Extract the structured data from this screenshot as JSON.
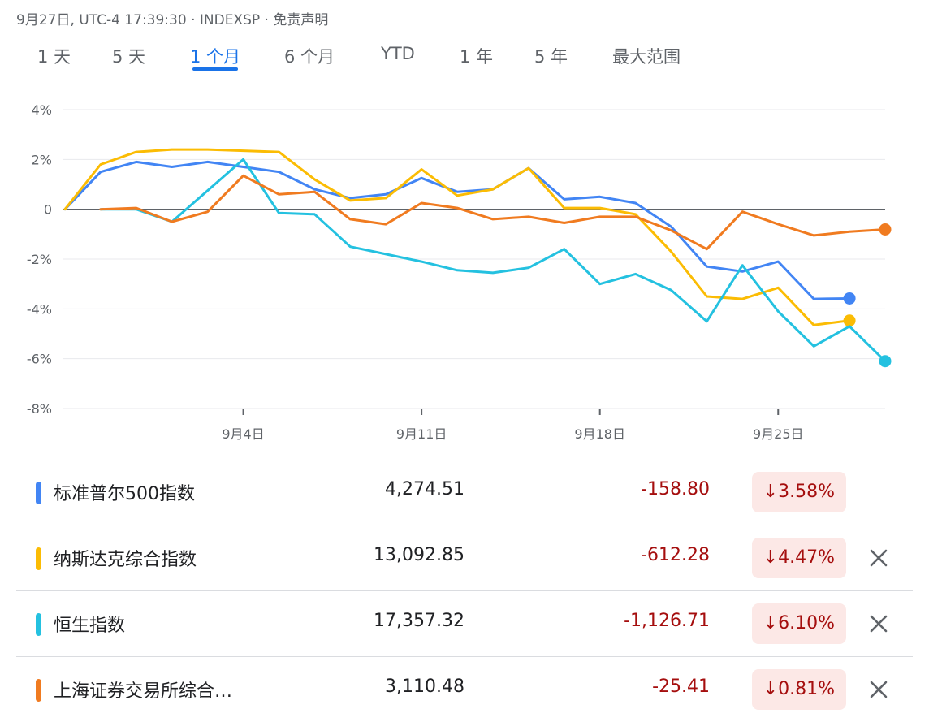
{
  "header": {
    "meta": "9月27日, UTC-4 17:39:30 · INDEXSP · 免责声明"
  },
  "tabs": [
    {
      "label": "1 天",
      "active": false
    },
    {
      "label": "5 天",
      "active": false
    },
    {
      "label": "1 个月",
      "active": true
    },
    {
      "label": "6 个月",
      "active": false
    },
    {
      "label": "YTD",
      "active": false
    },
    {
      "label": "1 年",
      "active": false
    },
    {
      "label": "5 年",
      "active": false
    },
    {
      "label": "最大范围",
      "active": false
    }
  ],
  "chart_data": {
    "type": "line",
    "yticks": [
      4,
      2,
      0,
      -2,
      -4,
      -6,
      -8
    ],
    "ytick_labels": [
      "4%",
      "2%",
      "0",
      "-2%",
      "-4%",
      "-6%",
      "-8%"
    ],
    "ylim": [
      -8,
      4
    ],
    "xlim": [
      0,
      23
    ],
    "xticks": [
      {
        "x": 5,
        "label": "9月4日"
      },
      {
        "x": 10,
        "label": "9月11日"
      },
      {
        "x": 15,
        "label": "9月18日"
      },
      {
        "x": 20,
        "label": "9月25日"
      }
    ],
    "grid": true,
    "series": [
      {
        "name": "标准普尔500指数",
        "color": "#4285f4",
        "points": [
          [
            0,
            0
          ],
          [
            1,
            1.5
          ],
          [
            2,
            1.9
          ],
          [
            3,
            1.7
          ],
          [
            4,
            1.9
          ],
          [
            5,
            1.7
          ],
          [
            6,
            1.5
          ],
          [
            7,
            0.8
          ],
          [
            8,
            0.45
          ],
          [
            9,
            0.6
          ],
          [
            10,
            1.25
          ],
          [
            11,
            0.7
          ],
          [
            12,
            0.8
          ],
          [
            13,
            1.65
          ],
          [
            14,
            0.4
          ],
          [
            15,
            0.5
          ],
          [
            16,
            0.25
          ],
          [
            17,
            -0.7
          ],
          [
            18,
            -2.3
          ],
          [
            19,
            -2.5
          ],
          [
            20,
            -2.1
          ],
          [
            21,
            -3.6
          ],
          [
            22,
            -3.58
          ]
        ]
      },
      {
        "name": "纳斯达克综合指数",
        "color": "#fbbc04",
        "points": [
          [
            0,
            0
          ],
          [
            1,
            1.8
          ],
          [
            2,
            2.3
          ],
          [
            3,
            2.4
          ],
          [
            4,
            2.4
          ],
          [
            5,
            2.35
          ],
          [
            6,
            2.3
          ],
          [
            7,
            1.2
          ],
          [
            8,
            0.35
          ],
          [
            9,
            0.45
          ],
          [
            10,
            1.6
          ],
          [
            11,
            0.55
          ],
          [
            12,
            0.8
          ],
          [
            13,
            1.65
          ],
          [
            14,
            0.05
          ],
          [
            15,
            0.05
          ],
          [
            16,
            -0.2
          ],
          [
            17,
            -1.7
          ],
          [
            18,
            -3.5
          ],
          [
            19,
            -3.6
          ],
          [
            20,
            -3.15
          ],
          [
            21,
            -4.65
          ],
          [
            22,
            -4.47
          ]
        ]
      },
      {
        "name": "恒生指数",
        "color": "#24c1e0",
        "points": [
          [
            1,
            0
          ],
          [
            2,
            0
          ],
          [
            3,
            -0.5
          ],
          [
            5,
            2.0
          ],
          [
            6,
            -0.15
          ],
          [
            7,
            -0.2
          ],
          [
            8,
            -1.5
          ],
          [
            9,
            -1.8
          ],
          [
            10,
            -2.1
          ],
          [
            11,
            -2.45
          ],
          [
            12,
            -2.55
          ],
          [
            13,
            -2.35
          ],
          [
            14,
            -1.6
          ],
          [
            15,
            -3.0
          ],
          [
            16,
            -2.6
          ],
          [
            17,
            -3.25
          ],
          [
            18,
            -4.5
          ],
          [
            19,
            -2.25
          ],
          [
            20,
            -4.1
          ],
          [
            21,
            -5.5
          ],
          [
            22,
            -4.7
          ],
          [
            23,
            -6.1
          ]
        ]
      },
      {
        "name": "上海证券交易所综合指数",
        "color": "#f07b20",
        "points": [
          [
            1,
            0
          ],
          [
            2,
            0.05
          ],
          [
            3,
            -0.5
          ],
          [
            4,
            -0.1
          ],
          [
            5,
            1.35
          ],
          [
            6,
            0.6
          ],
          [
            7,
            0.7
          ],
          [
            8,
            -0.4
          ],
          [
            9,
            -0.6
          ],
          [
            10,
            0.25
          ],
          [
            11,
            0.05
          ],
          [
            12,
            -0.4
          ],
          [
            13,
            -0.3
          ],
          [
            14,
            -0.55
          ],
          [
            15,
            -0.3
          ],
          [
            16,
            -0.3
          ],
          [
            17,
            -0.85
          ],
          [
            18,
            -1.6
          ],
          [
            19,
            -0.1
          ],
          [
            20,
            -0.6
          ],
          [
            21,
            -1.05
          ],
          [
            22,
            -0.9
          ],
          [
            23,
            -0.81
          ]
        ]
      }
    ]
  },
  "rows": [
    {
      "name": "标准普尔500指数",
      "value": "4,274.51",
      "change": "-158.80",
      "percent": "↓3.58%",
      "color": "#4285f4",
      "closable": false
    },
    {
      "name": "纳斯达克综合指数",
      "value": "13,092.85",
      "change": "-612.28",
      "percent": "↓4.47%",
      "color": "#fbbc04",
      "closable": true
    },
    {
      "name": "恒生指数",
      "value": "17,357.32",
      "change": "-1,126.71",
      "percent": "↓6.10%",
      "color": "#24c1e0",
      "closable": true
    },
    {
      "name": "上海证券交易所综合…",
      "value": "3,110.48",
      "change": "-25.41",
      "percent": "↓0.81%",
      "color": "#f07b20",
      "closable": true
    }
  ]
}
